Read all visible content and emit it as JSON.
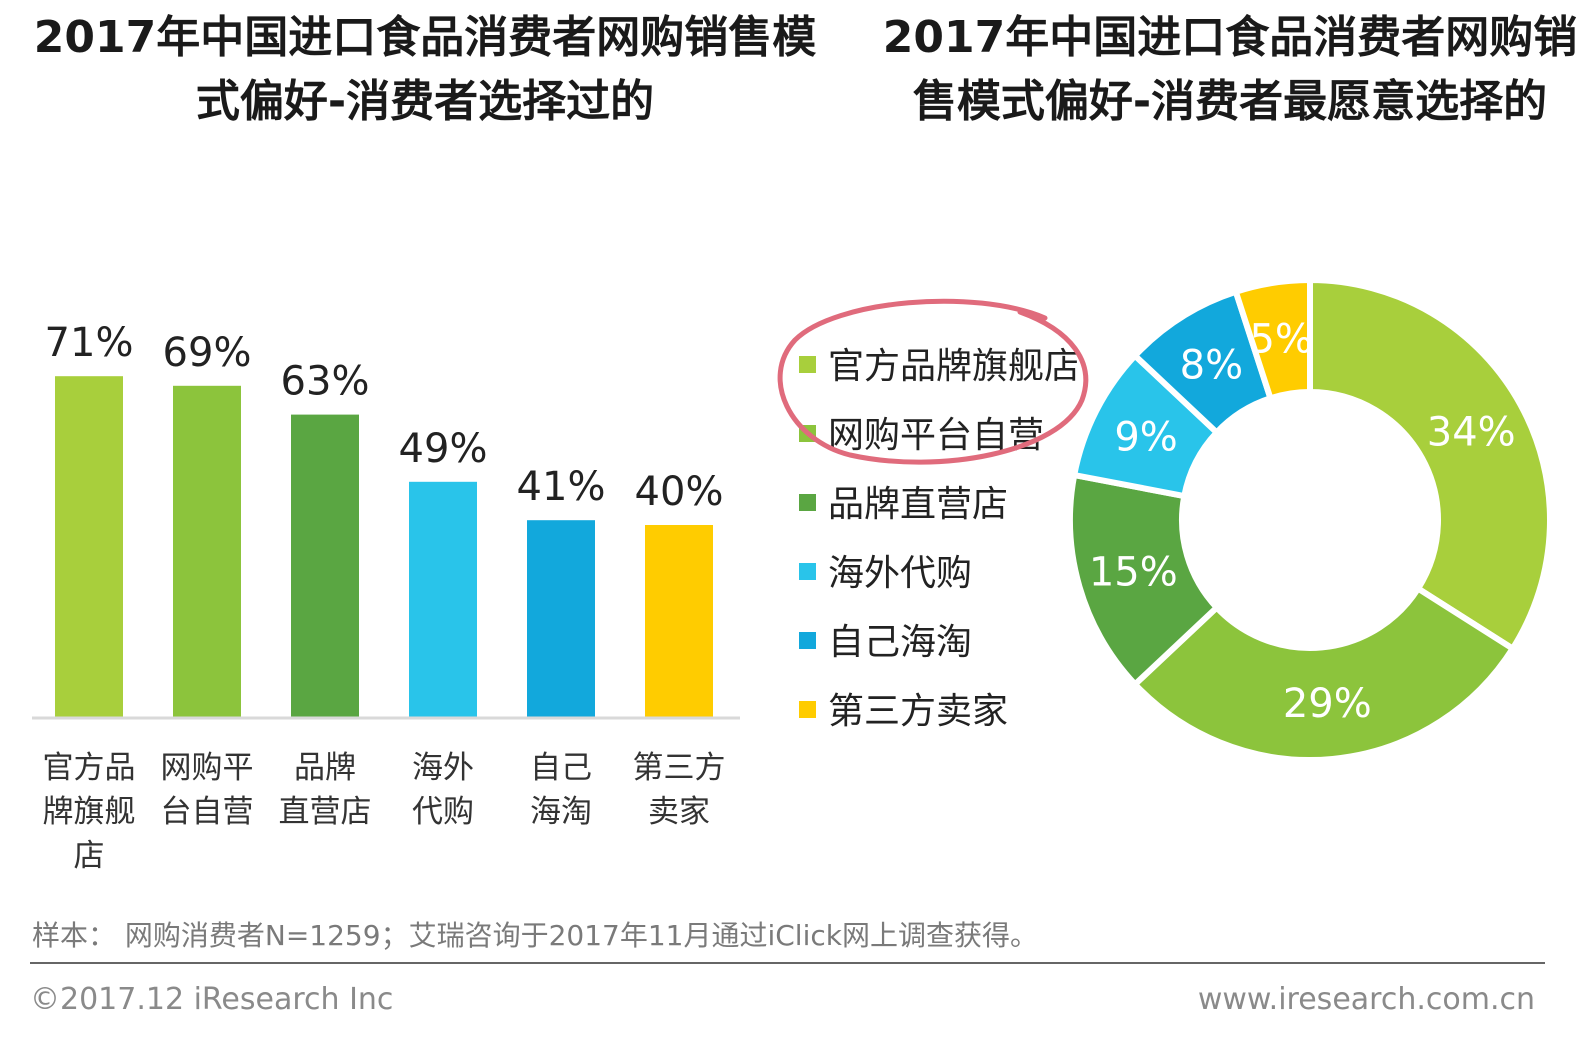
{
  "titles": {
    "left": "2017年中国进口食品消费者网购销售模式偏好-消费者选择过的",
    "right": "2017年中国进口食品消费者网购销售模式偏好-消费者最愿意选择的"
  },
  "chart_data": [
    {
      "type": "bar",
      "title": "2017年中国进口食品消费者网购销售模式偏好-消费者选择过的",
      "categories": [
        "官方品牌旗舰店",
        "网购平台自营",
        "品牌直营店",
        "海外代购",
        "自己海淘",
        "第三方卖家"
      ],
      "category_lines": [
        [
          "官方品",
          "牌旗舰",
          "店"
        ],
        [
          "网购平",
          "台自营"
        ],
        [
          "品牌",
          "直营店"
        ],
        [
          "海外",
          "代购"
        ],
        [
          "自己",
          "海淘"
        ],
        [
          "第三方",
          "卖家"
        ]
      ],
      "values": [
        71,
        69,
        63,
        49,
        41,
        40
      ],
      "value_labels": [
        "71%",
        "69%",
        "63%",
        "49%",
        "41%",
        "40%"
      ],
      "colors": [
        "#a8cf3c",
        "#8cc43c",
        "#5aa642",
        "#29c4ea",
        "#12a8dc",
        "#ffcc00"
      ],
      "ylim": [
        0,
        100
      ],
      "xlabel": "",
      "ylabel": ""
    },
    {
      "type": "pie",
      "title": "2017年中国进口食品消费者网购销售模式偏好-消费者最愿意选择的",
      "labels": [
        "官方品牌旗舰店",
        "网购平台自营",
        "品牌直营店",
        "海外代购",
        "自己海淘",
        "第三方卖家"
      ],
      "values": [
        34,
        29,
        15,
        9,
        8,
        5
      ],
      "value_labels": [
        "34%",
        "29%",
        "15%",
        "9%",
        "8%",
        "5%"
      ],
      "colors": [
        "#a8cf3c",
        "#8cc43c",
        "#5aa642",
        "#29c4ea",
        "#12a8dc",
        "#ffcc00"
      ],
      "legend": [
        "官方品牌旗舰店",
        "网购平台自营",
        "品牌直营店",
        "海外代购",
        "自己海淘",
        "第三方卖家"
      ],
      "legend_position": "left"
    }
  ],
  "footer": {
    "sample_note": "样本： 网购消费者N=1259；艾瑞咨询于2017年11月通过iClick网上调查获得。",
    "copyright": "©2017.12 iResearch Inc",
    "website": "www.iresearch.com.cn"
  }
}
